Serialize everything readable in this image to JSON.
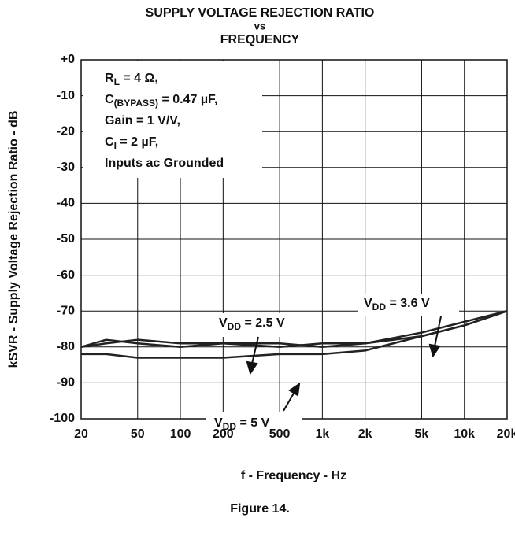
{
  "chart_data": {
    "type": "line",
    "title": [
      "SUPPLY VOLTAGE REJECTION RATIO",
      "vs",
      "FREQUENCY"
    ],
    "y_label": "kSVR - Supply Voltage Rejection Ratio - dB",
    "x_label": "f - Frequency - Hz",
    "caption": "Figure 14.",
    "x_scale": "log",
    "x": [
      20,
      30,
      50,
      100,
      200,
      500,
      1000,
      2000,
      5000,
      10000,
      20000
    ],
    "xlim": [
      20,
      20000
    ],
    "xticks": [
      20,
      50,
      100,
      200,
      500,
      {
        "value": 1000,
        "label": "1k"
      },
      {
        "value": 2000,
        "label": "2k"
      },
      {
        "value": 5000,
        "label": "5k"
      },
      {
        "value": 10000,
        "label": "10k"
      },
      {
        "value": 20000,
        "label": "20k"
      }
    ],
    "ylim": [
      -100,
      0
    ],
    "yticks": [
      {
        "value": 0,
        "label": "+0"
      },
      -10,
      -20,
      -30,
      -40,
      -50,
      -60,
      -70,
      -80,
      -90,
      -100
    ],
    "grid": true,
    "series": [
      {
        "label": [
          {
            "text": "V"
          },
          {
            "text": "DD",
            "sub": true
          },
          {
            "text": " = 2.5 V"
          }
        ],
        "color": "#222222",
        "values": [
          -80,
          -78,
          -79,
          -80,
          -79,
          -79,
          -80,
          -79,
          -77,
          -74,
          -70
        ]
      },
      {
        "label": [
          {
            "text": "V"
          },
          {
            "text": "DD",
            "sub": true
          },
          {
            "text": " = 3.6 V"
          }
        ],
        "color": "#222222",
        "values": [
          -80,
          -79,
          -78,
          -79,
          -79,
          -80,
          -79,
          -79,
          -76,
          -73,
          -70
        ]
      },
      {
        "label": [
          {
            "text": "V"
          },
          {
            "text": "DD",
            "sub": true
          },
          {
            "text": " = 5 V"
          }
        ],
        "color": "#222222",
        "values": [
          -82,
          -82,
          -83,
          -83,
          -83,
          -82,
          -82,
          -81,
          -77,
          -74,
          -70
        ]
      }
    ],
    "annotation": [
      [
        {
          "text": "R"
        },
        {
          "text": "L",
          "sub": true
        },
        {
          "text": " = 4 Ω,"
        }
      ],
      [
        {
          "text": "C"
        },
        {
          "text": "(BYPASS)",
          "sub": true
        },
        {
          "text": " = 0.47 µF,"
        }
      ],
      [
        {
          "text": "Gain = 1 V/V,"
        }
      ],
      [
        {
          "text": "C"
        },
        {
          "text": "I",
          "sub": true
        },
        {
          "text": " = 2 µF,"
        }
      ],
      [
        {
          "text": "Inputs ac Grounded"
        }
      ]
    ]
  }
}
